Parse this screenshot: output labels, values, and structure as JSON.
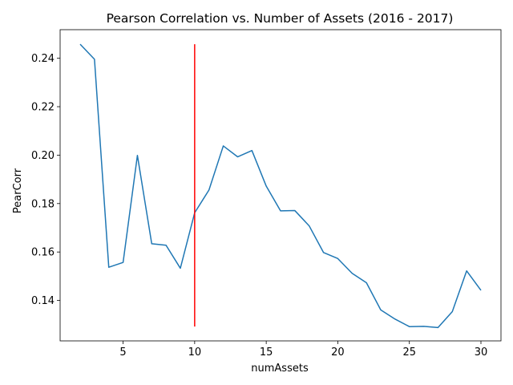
{
  "chart_data": {
    "type": "line",
    "title": "Pearson Correlation vs. Number of Assets (2016 - 2017)",
    "xlabel": "numAssets",
    "ylabel": "PearCorr",
    "xlim": [
      0.6,
      31.4
    ],
    "ylim": [
      0.1233,
      0.2518
    ],
    "x_ticks": [
      5,
      10,
      15,
      20,
      25,
      30
    ],
    "x_tick_labels": [
      "5",
      "10",
      "15",
      "20",
      "25",
      "30"
    ],
    "y_ticks": [
      0.14,
      0.16,
      0.18,
      0.2,
      0.22,
      0.24
    ],
    "y_tick_labels": [
      "0.14",
      "0.16",
      "0.18",
      "0.20",
      "0.22",
      "0.24"
    ],
    "grid": false,
    "series": [
      {
        "color": "#1f77b4",
        "x": [
          2,
          3,
          4,
          5,
          6,
          7,
          8,
          9,
          10,
          11,
          12,
          13,
          14,
          15,
          16,
          17,
          18,
          19,
          20,
          21,
          22,
          23,
          24,
          25,
          26,
          27,
          28,
          29,
          30
        ],
        "y": [
          0.2458,
          0.2396,
          0.1537,
          0.1557,
          0.1999,
          0.1634,
          0.1628,
          0.1533,
          0.1762,
          0.1856,
          0.2038,
          0.1993,
          0.2019,
          0.1872,
          0.177,
          0.1771,
          0.1708,
          0.1598,
          0.1573,
          0.1512,
          0.1473,
          0.1361,
          0.1323,
          0.1292,
          0.1293,
          0.1288,
          0.1354,
          0.1522,
          0.1442
        ]
      }
    ],
    "vertical_line": {
      "x": 10,
      "y_from": 0.1292,
      "y_to": 0.2458,
      "color": "#ff0000"
    }
  }
}
